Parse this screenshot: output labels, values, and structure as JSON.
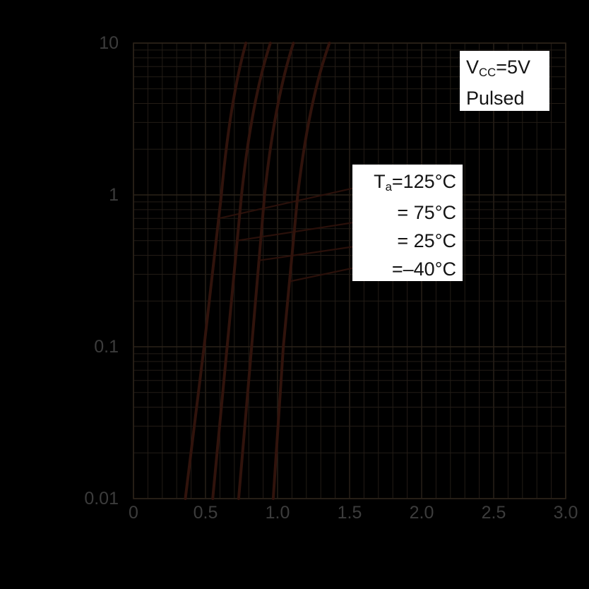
{
  "chart_data": {
    "type": "line",
    "title": "",
    "x_axis": {
      "scale": "linear",
      "min": 0,
      "max": 3.0,
      "tick_labels": [
        "0",
        "0.5",
        "1.0",
        "1.5",
        "2.0",
        "2.5",
        "3.0"
      ],
      "minor_step": 0.1,
      "major_step": 0.5,
      "grid": true
    },
    "y_axis": {
      "scale": "log",
      "min": 0.01,
      "max": 10,
      "tick_labels": [
        "10",
        "1",
        "0.1",
        "0.01"
      ],
      "tick_values": [
        10,
        1,
        0.1,
        0.01
      ],
      "grid": true
    },
    "series": [
      {
        "name": "Ta=125°C",
        "steep_curve": [
          [
            0.36,
            0.01
          ],
          [
            0.49,
            0.1
          ],
          [
            0.61,
            1
          ],
          [
            0.78,
            10
          ]
        ],
        "branch_line": [
          [
            0.59,
            0.7
          ],
          [
            1.52,
            1.11
          ]
        ]
      },
      {
        "name": "Ta=75°C",
        "steep_curve": [
          [
            0.55,
            0.01
          ],
          [
            0.65,
            0.1
          ],
          [
            0.75,
            1
          ],
          [
            0.95,
            10
          ]
        ],
        "branch_line": [
          [
            0.72,
            0.5
          ],
          [
            1.52,
            0.65
          ]
        ]
      },
      {
        "name": "Ta=25°C",
        "steep_curve": [
          [
            0.73,
            0.01
          ],
          [
            0.82,
            0.1
          ],
          [
            0.91,
            1
          ],
          [
            1.11,
            10
          ]
        ],
        "branch_line": [
          [
            0.87,
            0.37
          ],
          [
            1.52,
            0.45
          ]
        ]
      },
      {
        "name": "Ta=-40°C",
        "steep_curve": [
          [
            0.97,
            0.01
          ],
          [
            1.04,
            0.1
          ],
          [
            1.14,
            1
          ],
          [
            1.36,
            10
          ]
        ],
        "branch_line": [
          [
            1.09,
            0.27
          ],
          [
            1.52,
            0.33
          ]
        ]
      }
    ],
    "colors": {
      "background": "#000000",
      "grid_minor": "#231c16",
      "grid_major": "#2b2219",
      "curve": "#31130c",
      "branch": "#2a100a",
      "tick_text": "#3c3c3c"
    },
    "legend_position": "middle-right-box"
  },
  "annotations": {
    "vcc_box": {
      "symbol": "V",
      "subscript": "CC",
      "rest": "=5V",
      "line2": "Pulsed"
    },
    "ta_box": {
      "symbol": "T",
      "subscript": "a",
      "rest": "=125°C",
      "line2": "= 75°C",
      "line3": "= 25°C",
      "line4": "=–40°C"
    }
  }
}
